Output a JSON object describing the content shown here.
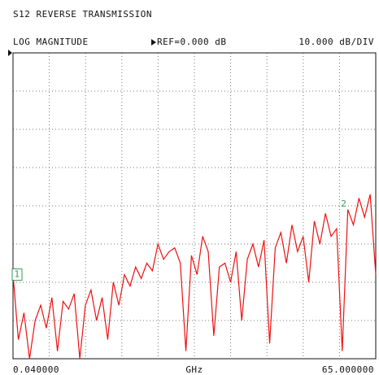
{
  "chart_data": {
    "type": "line",
    "title": "S12 REVERSE TRANSMISSION",
    "format": "LOG MAGNITUDE",
    "reference_label": "REF=0.000 dB",
    "scale_label": "10.000 dB/DIV",
    "xlabel": "GHz",
    "start_label": "0.040000",
    "stop_label": "65.000000",
    "xlim": [
      0.04,
      65
    ],
    "xticks": [
      0.04,
      6.536,
      13.032,
      19.528,
      26.024,
      32.52,
      39.016,
      45.512,
      52.008,
      58.504,
      65
    ],
    "ylim": [
      -80,
      0
    ],
    "yticks": [
      -80,
      -70,
      -60,
      -50,
      -40,
      -30,
      -20,
      -10,
      0
    ],
    "grid": true,
    "series": [
      {
        "name": "S12",
        "color": "#ee1111",
        "x": [
          0.04,
          1,
          2,
          3,
          4,
          5,
          6,
          7,
          8,
          9,
          10,
          11,
          12,
          13,
          14,
          15,
          16,
          17,
          18,
          19,
          20,
          21,
          22,
          23,
          24,
          25,
          26,
          27,
          28,
          29,
          30,
          31,
          32,
          33,
          34,
          35,
          36,
          37,
          38,
          39,
          40,
          41,
          42,
          43,
          44,
          45,
          46,
          47,
          48,
          49,
          50,
          51,
          52,
          53,
          54,
          55,
          56,
          57,
          58,
          59,
          60,
          61,
          62,
          63,
          64,
          65
        ],
        "values": [
          -58,
          -75,
          -68,
          -80,
          -70,
          -66,
          -72,
          -64,
          -78,
          -65,
          -67,
          -63,
          -80,
          -66,
          -62,
          -70,
          -64,
          -75,
          -60,
          -66,
          -58,
          -61,
          -56,
          -59,
          -55,
          -57,
          -50,
          -54,
          -52,
          -51,
          -55,
          -78,
          -53,
          -58,
          -48,
          -52,
          -74,
          -56,
          -55,
          -60,
          -52,
          -70,
          -54,
          -50,
          -56,
          -49,
          -76,
          -51,
          -47,
          -55,
          -45,
          -52,
          -48,
          -60,
          -44,
          -50,
          -42,
          -48,
          -46,
          -78,
          -41,
          -45,
          -38,
          -43,
          -37,
          -58
        ]
      }
    ],
    "markers": [
      {
        "label": "1",
        "x": 0.04,
        "value": -58
      },
      {
        "label": "2",
        "x": 59.3,
        "value": -40
      }
    ]
  }
}
